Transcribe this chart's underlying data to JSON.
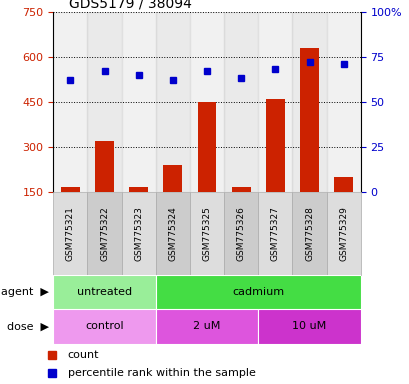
{
  "title": "GDS5179 / 38094",
  "samples": [
    "GSM775321",
    "GSM775322",
    "GSM775323",
    "GSM775324",
    "GSM775325",
    "GSM775326",
    "GSM775327",
    "GSM775328",
    "GSM775329"
  ],
  "counts": [
    165,
    320,
    168,
    240,
    450,
    165,
    460,
    630,
    200
  ],
  "percentile_ranks": [
    62,
    67,
    65,
    62,
    67,
    63,
    68,
    72,
    71
  ],
  "ylim_left": [
    150,
    750
  ],
  "ylim_right": [
    0,
    100
  ],
  "yticks_left": [
    150,
    300,
    450,
    600,
    750
  ],
  "yticks_right": [
    0,
    25,
    50,
    75,
    100
  ],
  "bar_color": "#cc2200",
  "dot_color": "#0000cc",
  "agent_groups": [
    {
      "label": "untreated",
      "start": 0,
      "end": 3,
      "color": "#99ee99"
    },
    {
      "label": "cadmium",
      "start": 3,
      "end": 9,
      "color": "#44dd44"
    }
  ],
  "dose_groups": [
    {
      "label": "control",
      "start": 0,
      "end": 3,
      "color": "#ee99ee"
    },
    {
      "label": "2 uM",
      "start": 3,
      "end": 6,
      "color": "#dd55dd"
    },
    {
      "label": "10 uM",
      "start": 6,
      "end": 9,
      "color": "#cc33cc"
    }
  ],
  "legend_count_label": "count",
  "legend_pct_label": "percentile rank within the sample",
  "col_bg_odd": "#cccccc",
  "col_bg_even": "#dddddd",
  "agent_label": "agent",
  "dose_label": "dose"
}
